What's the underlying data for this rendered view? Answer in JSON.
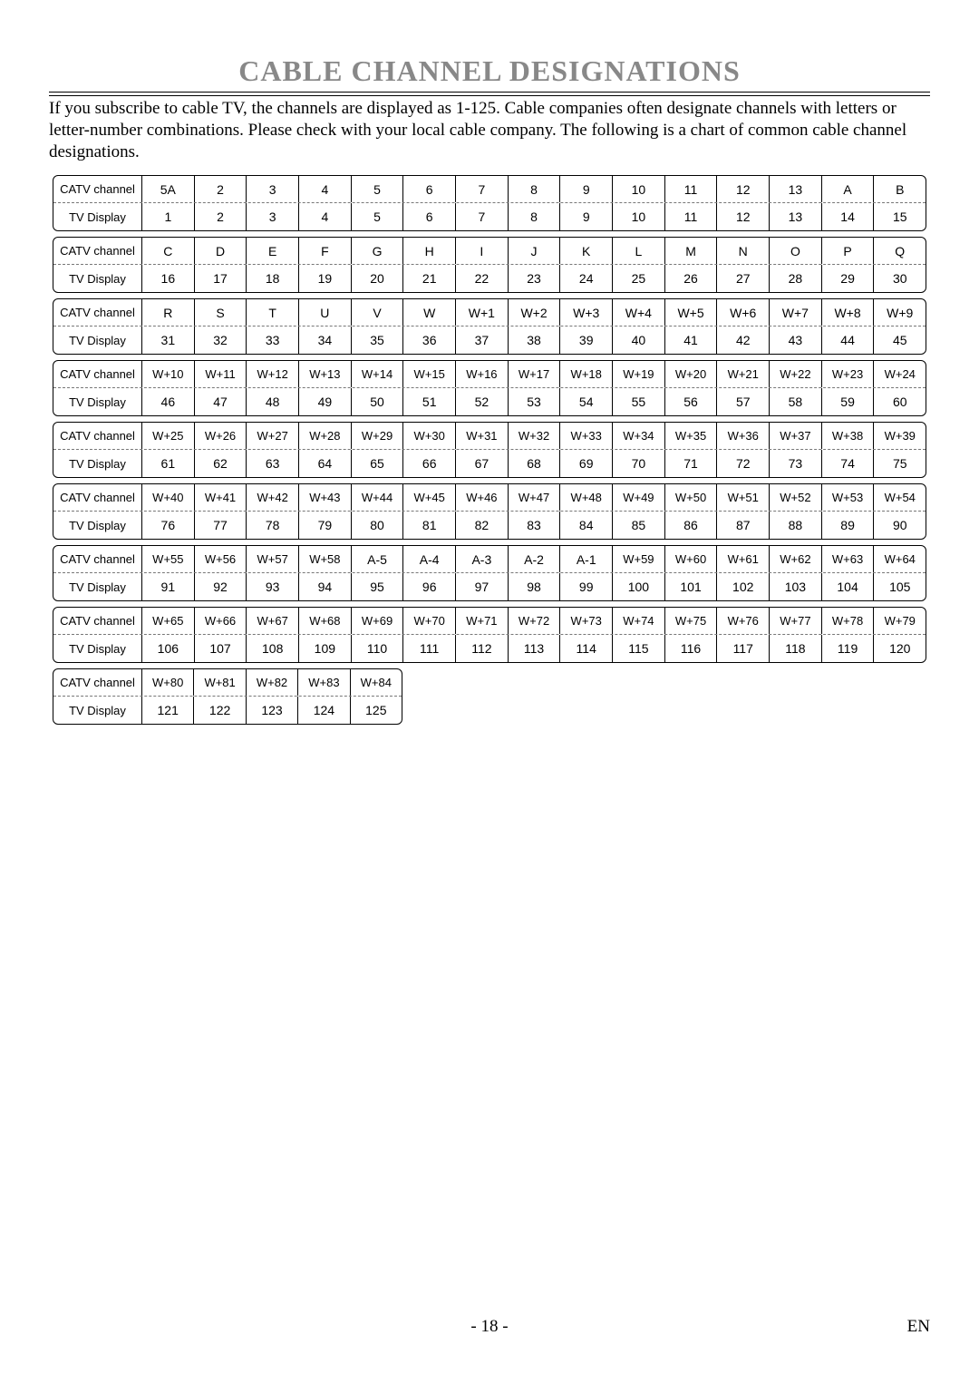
{
  "title": "CABLE CHANNEL DESIGNATIONS",
  "intro": "If you subscribe to cable TV, the channels are displayed as 1-125. Cable companies often designate channels with letters or letter-number combinations. Please check with your local cable company. The following is a chart of common cable channel designations.",
  "row_labels": {
    "catv": "CATV channel",
    "disp": "TV Display"
  },
  "blocks": [
    {
      "catv": [
        "5A",
        "2",
        "3",
        "4",
        "5",
        "6",
        "7",
        "8",
        "9",
        "10",
        "11",
        "12",
        "13",
        "A",
        "B"
      ],
      "disp": [
        "1",
        "2",
        "3",
        "4",
        "5",
        "6",
        "7",
        "8",
        "9",
        "10",
        "11",
        "12",
        "13",
        "14",
        "15"
      ]
    },
    {
      "catv": [
        "C",
        "D",
        "E",
        "F",
        "G",
        "H",
        "I",
        "J",
        "K",
        "L",
        "M",
        "N",
        "O",
        "P",
        "Q"
      ],
      "disp": [
        "16",
        "17",
        "18",
        "19",
        "20",
        "21",
        "22",
        "23",
        "24",
        "25",
        "26",
        "27",
        "28",
        "29",
        "30"
      ]
    },
    {
      "catv": [
        "R",
        "S",
        "T",
        "U",
        "V",
        "W",
        "W+1",
        "W+2",
        "W+3",
        "W+4",
        "W+5",
        "W+6",
        "W+7",
        "W+8",
        "W+9"
      ],
      "disp": [
        "31",
        "32",
        "33",
        "34",
        "35",
        "36",
        "37",
        "38",
        "39",
        "40",
        "41",
        "42",
        "43",
        "44",
        "45"
      ]
    },
    {
      "catv": [
        "W+10",
        "W+11",
        "W+12",
        "W+13",
        "W+14",
        "W+15",
        "W+16",
        "W+17",
        "W+18",
        "W+19",
        "W+20",
        "W+21",
        "W+22",
        "W+23",
        "W+24"
      ],
      "disp": [
        "46",
        "47",
        "48",
        "49",
        "50",
        "51",
        "52",
        "53",
        "54",
        "55",
        "56",
        "57",
        "58",
        "59",
        "60"
      ]
    },
    {
      "catv": [
        "W+25",
        "W+26",
        "W+27",
        "W+28",
        "W+29",
        "W+30",
        "W+31",
        "W+32",
        "W+33",
        "W+34",
        "W+35",
        "W+36",
        "W+37",
        "W+38",
        "W+39"
      ],
      "disp": [
        "61",
        "62",
        "63",
        "64",
        "65",
        "66",
        "67",
        "68",
        "69",
        "70",
        "71",
        "72",
        "73",
        "74",
        "75"
      ]
    },
    {
      "catv": [
        "W+40",
        "W+41",
        "W+42",
        "W+43",
        "W+44",
        "W+45",
        "W+46",
        "W+47",
        "W+48",
        "W+49",
        "W+50",
        "W+51",
        "W+52",
        "W+53",
        "W+54"
      ],
      "disp": [
        "76",
        "77",
        "78",
        "79",
        "80",
        "81",
        "82",
        "83",
        "84",
        "85",
        "86",
        "87",
        "88",
        "89",
        "90"
      ]
    },
    {
      "catv": [
        "W+55",
        "W+56",
        "W+57",
        "W+58",
        "A-5",
        "A-4",
        "A-3",
        "A-2",
        "A-1",
        "W+59",
        "W+60",
        "W+61",
        "W+62",
        "W+63",
        "W+64"
      ],
      "disp": [
        "91",
        "92",
        "93",
        "94",
        "95",
        "96",
        "97",
        "98",
        "99",
        "100",
        "101",
        "102",
        "103",
        "104",
        "105"
      ]
    },
    {
      "catv": [
        "W+65",
        "W+66",
        "W+67",
        "W+68",
        "W+69",
        "W+70",
        "W+71",
        "W+72",
        "W+73",
        "W+74",
        "W+75",
        "W+76",
        "W+77",
        "W+78",
        "W+79"
      ],
      "disp": [
        "106",
        "107",
        "108",
        "109",
        "110",
        "111",
        "112",
        "113",
        "114",
        "115",
        "116",
        "117",
        "118",
        "119",
        "120"
      ]
    },
    {
      "catv": [
        "W+80",
        "W+81",
        "W+82",
        "W+83",
        "W+84"
      ],
      "disp": [
        "121",
        "122",
        "123",
        "124",
        "125"
      ],
      "short": true
    }
  ],
  "style": {
    "full_cols": 15,
    "short_cols": 5,
    "cell_width_full": 57.6,
    "label_width": 98,
    "title_color": "#888888",
    "border_color": "#000000",
    "dash_color": "#777777",
    "font_table": 14,
    "font_label": 13,
    "title_fontsize": 32,
    "intro_fontsize": 19
  },
  "footer": {
    "page": "- 18 -",
    "lang": "EN"
  }
}
